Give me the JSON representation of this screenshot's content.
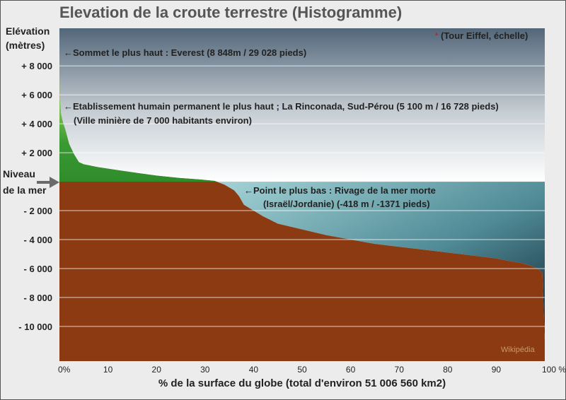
{
  "chart_data": {
    "type": "area",
    "title": "Elevation de la croute terrestre (Histogramme)",
    "ylabel_line1": "Elévation",
    "ylabel_line2": "(mètres)",
    "xlabel": "% de la surface du globe (total d'environ 51 006 560 km2)",
    "sea_level_label_line1": "Niveau",
    "sea_level_label_line2": "de la mer",
    "xlim": [
      0,
      100
    ],
    "ylim": [
      -12400,
      10600
    ],
    "y_ticks": [
      {
        "value": 8000,
        "label": "+ 8 000"
      },
      {
        "value": 6000,
        "label": "+ 6 000"
      },
      {
        "value": 4000,
        "label": "+ 4 000"
      },
      {
        "value": 2000,
        "label": "+ 2 000"
      },
      {
        "value": -2000,
        "label": "- 2 000"
      },
      {
        "value": -4000,
        "label": "- 4 000"
      },
      {
        "value": -6000,
        "label": "- 6 000"
      },
      {
        "value": -8000,
        "label": "- 8 000"
      },
      {
        "value": -10000,
        "label": "- 10 000"
      }
    ],
    "x_ticks": [
      {
        "value": 0,
        "label": "0%"
      },
      {
        "value": 10,
        "label": "10"
      },
      {
        "value": 20,
        "label": "20"
      },
      {
        "value": 30,
        "label": "30"
      },
      {
        "value": 40,
        "label": "40"
      },
      {
        "value": 50,
        "label": "50"
      },
      {
        "value": 60,
        "label": "60"
      },
      {
        "value": 70,
        "label": "70"
      },
      {
        "value": 80,
        "label": "80"
      },
      {
        "value": 90,
        "label": "90"
      },
      {
        "value": 100,
        "label": "100 %"
      }
    ],
    "x": [
      0,
      0.05,
      0.3,
      0.7,
      1.2,
      2,
      3,
      4,
      5,
      8,
      12,
      16,
      20,
      25,
      29,
      32,
      34,
      36,
      37,
      38,
      40,
      42,
      45,
      50,
      55,
      60,
      65,
      70,
      75,
      80,
      85,
      90,
      93,
      95,
      97,
      98.5,
      99.5,
      100
    ],
    "elevation": [
      8848,
      5800,
      4700,
      4100,
      3600,
      2600,
      1900,
      1350,
      1200,
      1000,
      800,
      600,
      420,
      250,
      150,
      50,
      -200,
      -600,
      -1000,
      -1600,
      -2000,
      -2400,
      -2900,
      -3300,
      -3700,
      -4000,
      -4300,
      -4500,
      -4700,
      -4900,
      -5100,
      -5300,
      -5500,
      -5600,
      -5800,
      -6000,
      -6300,
      -11000
    ],
    "annotations": [
      {
        "id": "everest",
        "text": "←Sommet le plus haut : Everest (8 848m / 29 028 pieds)"
      },
      {
        "id": "rinconada",
        "text": "←Etablissement humain permanent le plus haut ; La Rinconada, Sud-Pérou  (5 100 m / 16 728 pieds)"
      },
      {
        "id": "rinconada2",
        "text": "(Ville minière de 7 000 habitants environ)"
      },
      {
        "id": "deadsea",
        "text": "←Point le plus bas : Rivage de la mer morte"
      },
      {
        "id": "deadsea2",
        "text": "(Israël/Jordanie)  (-418 m / -1371 pieds)"
      },
      {
        "id": "eiffel",
        "text": "(Tour Eiffel, échelle)"
      }
    ],
    "credit": "Wikipédia",
    "colors": {
      "land": "#2f8c2b",
      "land_high": "#c6e88a",
      "crust": "#8b3a12",
      "sky_top": "#53677a",
      "sky_bottom": "#ffffff",
      "ocean_top": "#a4d3d6",
      "ocean_bottom": "#0f2230",
      "arrow": "#6a6a6a",
      "eiffel": "#cc2222"
    }
  }
}
